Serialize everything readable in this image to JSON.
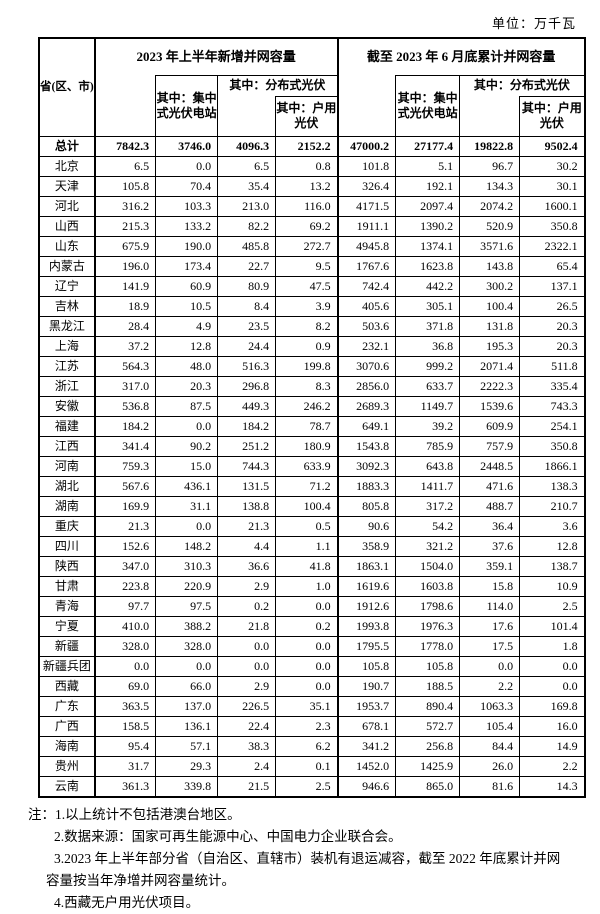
{
  "unit_label": "单位：万千瓦",
  "table": {
    "header": {
      "province": "省(区、市)",
      "group_new": "2023 年上半年新增并网容量",
      "group_cumulative": "截至 2023 年 6 月底累计并网容量",
      "sub_centralized": "其中：集中式光伏电站",
      "sub_distributed": "其中：分布式光伏",
      "sub_household": "其中：户用光伏"
    },
    "rows": [
      {
        "name": "总计",
        "values": [
          "7842.3",
          "3746.0",
          "4096.3",
          "2152.2",
          "47000.2",
          "27177.4",
          "19822.8",
          "9502.4"
        ]
      },
      {
        "name": "北京",
        "values": [
          "6.5",
          "0.0",
          "6.5",
          "0.8",
          "101.8",
          "5.1",
          "96.7",
          "30.2"
        ]
      },
      {
        "name": "天津",
        "values": [
          "105.8",
          "70.4",
          "35.4",
          "13.2",
          "326.4",
          "192.1",
          "134.3",
          "30.1"
        ]
      },
      {
        "name": "河北",
        "values": [
          "316.2",
          "103.3",
          "213.0",
          "116.0",
          "4171.5",
          "2097.4",
          "2074.2",
          "1600.1"
        ]
      },
      {
        "name": "山西",
        "values": [
          "215.3",
          "133.2",
          "82.2",
          "69.2",
          "1911.1",
          "1390.2",
          "520.9",
          "350.8"
        ]
      },
      {
        "name": "山东",
        "values": [
          "675.9",
          "190.0",
          "485.8",
          "272.7",
          "4945.8",
          "1374.1",
          "3571.6",
          "2322.1"
        ]
      },
      {
        "name": "内蒙古",
        "values": [
          "196.0",
          "173.4",
          "22.7",
          "9.5",
          "1767.6",
          "1623.8",
          "143.8",
          "65.4"
        ]
      },
      {
        "name": "辽宁",
        "values": [
          "141.9",
          "60.9",
          "80.9",
          "47.5",
          "742.4",
          "442.2",
          "300.2",
          "137.1"
        ]
      },
      {
        "name": "吉林",
        "values": [
          "18.9",
          "10.5",
          "8.4",
          "3.9",
          "405.6",
          "305.1",
          "100.4",
          "26.5"
        ]
      },
      {
        "name": "黑龙江",
        "values": [
          "28.4",
          "4.9",
          "23.5",
          "8.2",
          "503.6",
          "371.8",
          "131.8",
          "20.3"
        ]
      },
      {
        "name": "上海",
        "values": [
          "37.2",
          "12.8",
          "24.4",
          "0.9",
          "232.1",
          "36.8",
          "195.3",
          "20.3"
        ]
      },
      {
        "name": "江苏",
        "values": [
          "564.3",
          "48.0",
          "516.3",
          "199.8",
          "3070.6",
          "999.2",
          "2071.4",
          "511.8"
        ]
      },
      {
        "name": "浙江",
        "values": [
          "317.0",
          "20.3",
          "296.8",
          "8.3",
          "2856.0",
          "633.7",
          "2222.3",
          "335.4"
        ]
      },
      {
        "name": "安徽",
        "values": [
          "536.8",
          "87.5",
          "449.3",
          "246.2",
          "2689.3",
          "1149.7",
          "1539.6",
          "743.3"
        ]
      },
      {
        "name": "福建",
        "values": [
          "184.2",
          "0.0",
          "184.2",
          "78.7",
          "649.1",
          "39.2",
          "609.9",
          "254.1"
        ]
      },
      {
        "name": "江西",
        "values": [
          "341.4",
          "90.2",
          "251.2",
          "180.9",
          "1543.8",
          "785.9",
          "757.9",
          "350.8"
        ]
      },
      {
        "name": "河南",
        "values": [
          "759.3",
          "15.0",
          "744.3",
          "633.9",
          "3092.3",
          "643.8",
          "2448.5",
          "1866.1"
        ]
      },
      {
        "name": "湖北",
        "values": [
          "567.6",
          "436.1",
          "131.5",
          "71.2",
          "1883.3",
          "1411.7",
          "471.6",
          "138.3"
        ]
      },
      {
        "name": "湖南",
        "values": [
          "169.9",
          "31.1",
          "138.8",
          "100.4",
          "805.8",
          "317.2",
          "488.7",
          "210.7"
        ]
      },
      {
        "name": "重庆",
        "values": [
          "21.3",
          "0.0",
          "21.3",
          "0.5",
          "90.6",
          "54.2",
          "36.4",
          "3.6"
        ]
      },
      {
        "name": "四川",
        "values": [
          "152.6",
          "148.2",
          "4.4",
          "1.1",
          "358.9",
          "321.2",
          "37.6",
          "12.8"
        ]
      },
      {
        "name": "陕西",
        "values": [
          "347.0",
          "310.3",
          "36.6",
          "41.8",
          "1863.1",
          "1504.0",
          "359.1",
          "138.7"
        ]
      },
      {
        "name": "甘肃",
        "values": [
          "223.8",
          "220.9",
          "2.9",
          "1.0",
          "1619.6",
          "1603.8",
          "15.8",
          "10.9"
        ]
      },
      {
        "name": "青海",
        "values": [
          "97.7",
          "97.5",
          "0.2",
          "0.0",
          "1912.6",
          "1798.6",
          "114.0",
          "2.5"
        ]
      },
      {
        "name": "宁夏",
        "values": [
          "410.0",
          "388.2",
          "21.8",
          "0.2",
          "1993.8",
          "1976.3",
          "17.6",
          "101.4"
        ]
      },
      {
        "name": "新疆",
        "values": [
          "328.0",
          "328.0",
          "0.0",
          "0.0",
          "1795.5",
          "1778.0",
          "17.5",
          "1.8"
        ]
      },
      {
        "name": "新疆兵团",
        "values": [
          "0.0",
          "0.0",
          "0.0",
          "0.0",
          "105.8",
          "105.8",
          "0.0",
          "0.0"
        ]
      },
      {
        "name": "西藏",
        "values": [
          "69.0",
          "66.0",
          "2.9",
          "0.0",
          "190.7",
          "188.5",
          "2.2",
          "0.0"
        ]
      },
      {
        "name": "广东",
        "values": [
          "363.5",
          "137.0",
          "226.5",
          "35.1",
          "1953.7",
          "890.4",
          "1063.3",
          "169.8"
        ]
      },
      {
        "name": "广西",
        "values": [
          "158.5",
          "136.1",
          "22.4",
          "2.3",
          "678.1",
          "572.7",
          "105.4",
          "16.0"
        ]
      },
      {
        "name": "海南",
        "values": [
          "95.4",
          "57.1",
          "38.3",
          "6.2",
          "341.2",
          "256.8",
          "84.4",
          "14.9"
        ]
      },
      {
        "name": "贵州",
        "values": [
          "31.7",
          "29.3",
          "2.4",
          "0.1",
          "1452.0",
          "1425.9",
          "26.0",
          "2.2"
        ]
      },
      {
        "name": "云南",
        "values": [
          "361.3",
          "339.8",
          "21.5",
          "2.5",
          "946.6",
          "865.0",
          "81.6",
          "14.3"
        ]
      }
    ]
  },
  "notes": [
    "注：1.以上统计不包括港澳台地区。",
    "2.数据来源：国家可再生能源中心、中国电力企业联合会。",
    "3.2023 年上半年部分省（自治区、直辖市）装机有退运减容，截至 2022 年底累计并网容量按当年净增并网容量统计。",
    "4.西藏无户用光伏项目。"
  ]
}
